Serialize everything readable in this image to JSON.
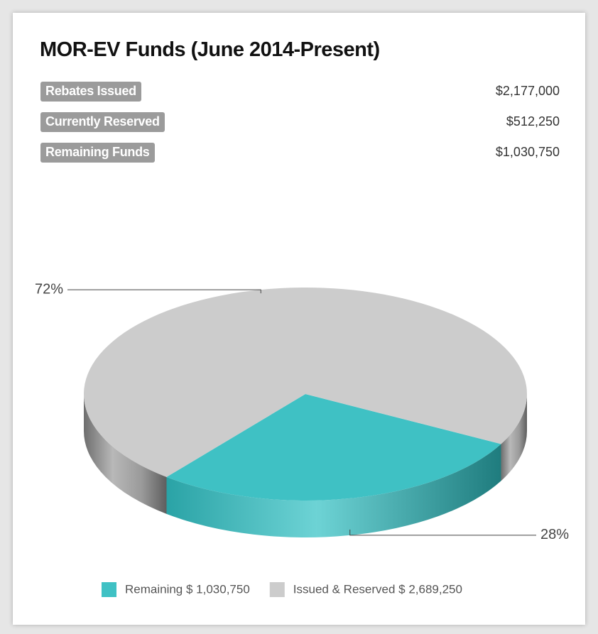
{
  "panel": {
    "title": "MOR-EV Funds (June 2014-Present)",
    "stats": [
      {
        "label": "Rebates Issued",
        "value": "$2,177,000"
      },
      {
        "label": "Currently Reserved",
        "value": "$512,250"
      },
      {
        "label": "Remaining Funds",
        "value": "$1,030,750"
      }
    ]
  },
  "chart_data": {
    "type": "pie",
    "categories": [
      "Remaining $ 1,030,750",
      "Issued & Reserved $ 2,689,250"
    ],
    "values": [
      28,
      72
    ],
    "value_labels": [
      "28%",
      "72%"
    ],
    "colors": [
      "#3fc1c4",
      "#cccccc"
    ],
    "legend": "bottom"
  }
}
